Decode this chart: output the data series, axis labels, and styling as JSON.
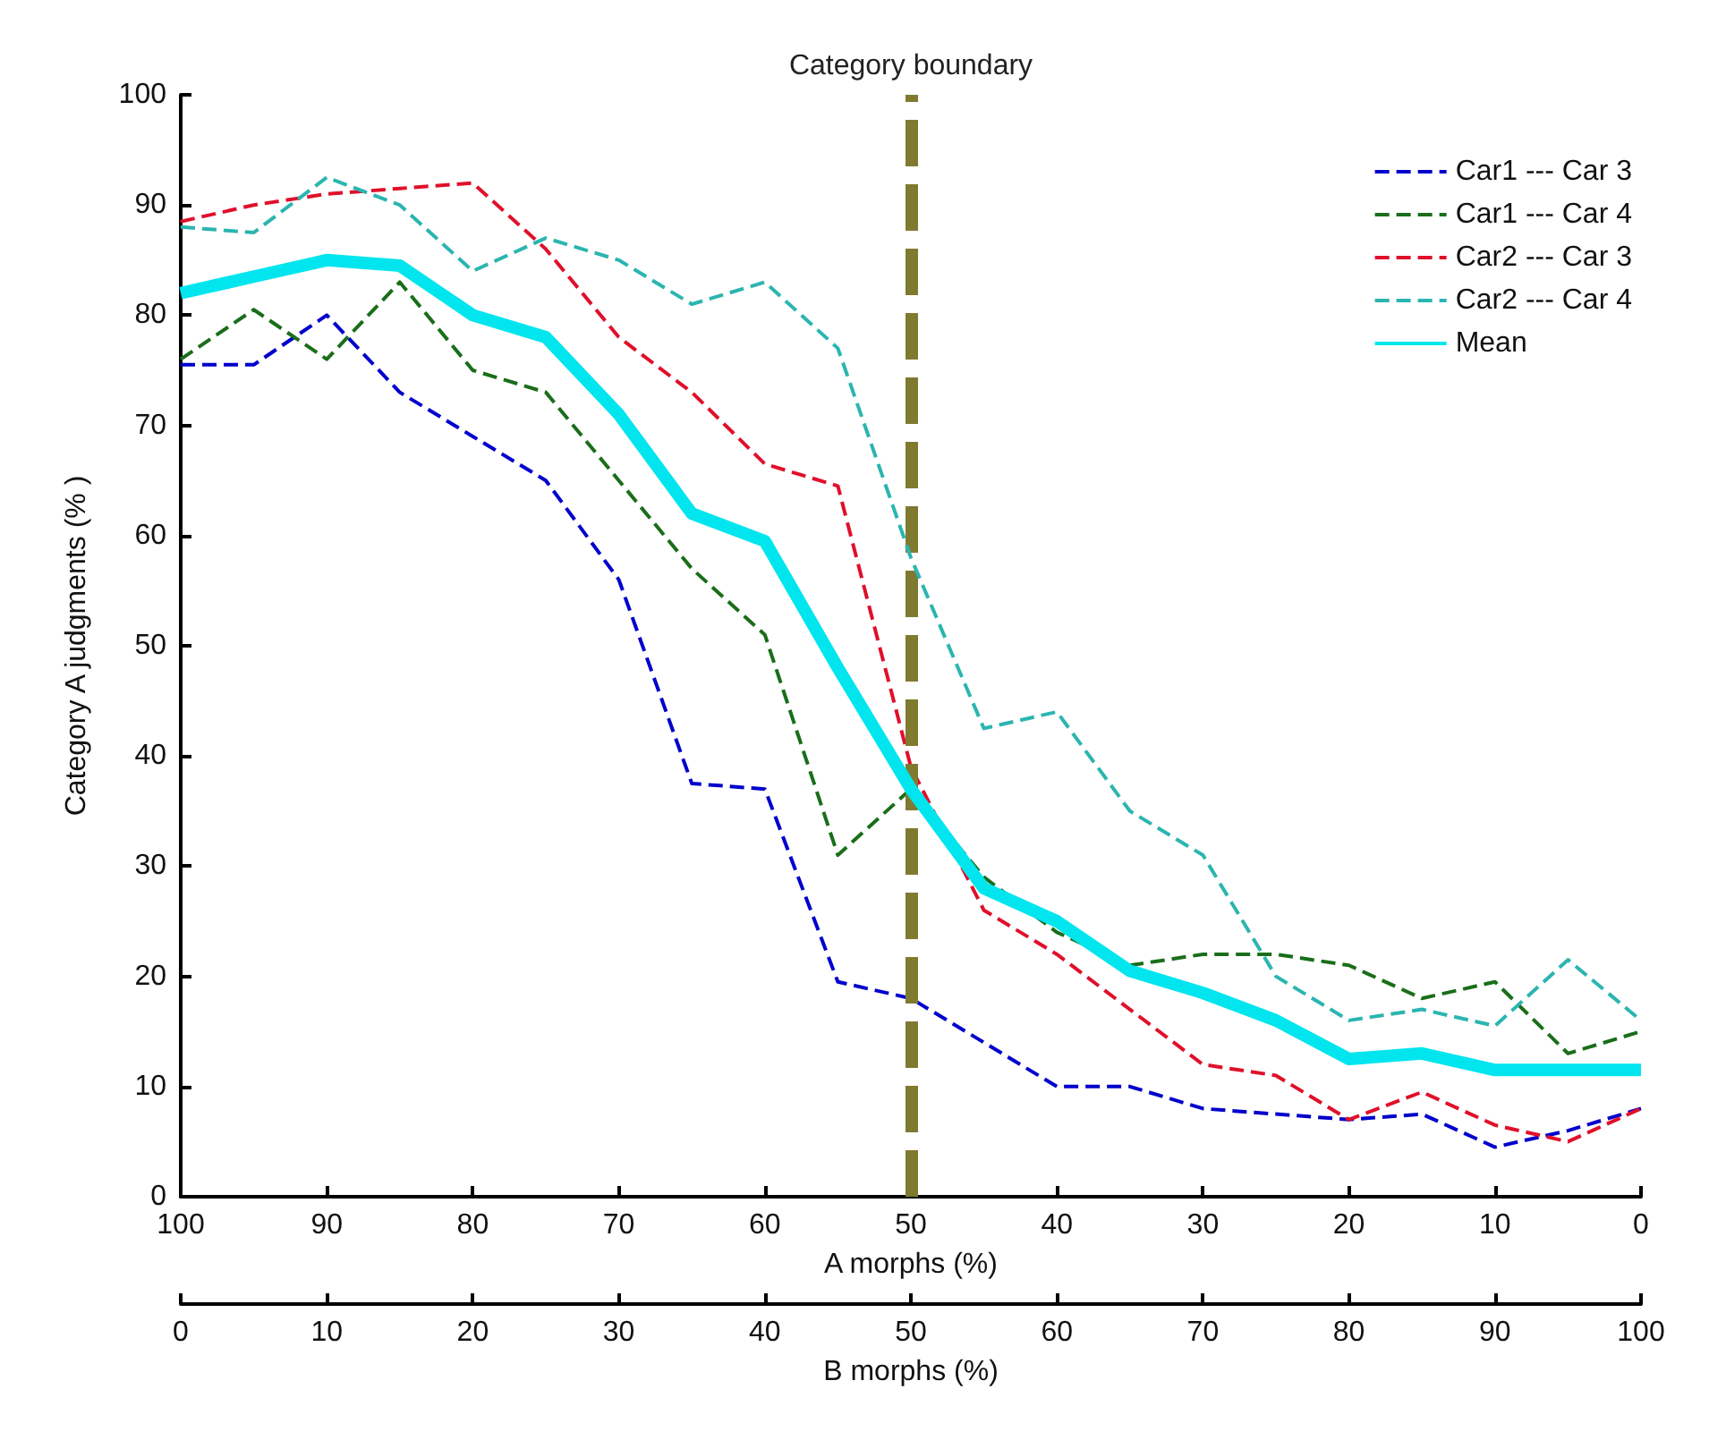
{
  "chart_data": {
    "type": "line",
    "xlabel": "A morphs (%)",
    "x2label": "B morphs (%)",
    "ylabel": "Category A judgments (% )",
    "x": [
      100,
      95,
      90,
      85,
      80,
      75,
      70,
      65,
      60,
      55,
      50,
      45,
      40,
      35,
      30,
      25,
      20,
      15,
      10,
      5,
      0
    ],
    "xlim": [
      100,
      0
    ],
    "xticks": [
      100,
      90,
      80,
      70,
      60,
      50,
      40,
      30,
      20,
      10,
      0
    ],
    "x2lim": [
      0,
      100
    ],
    "x2ticks": [
      0,
      10,
      20,
      30,
      40,
      50,
      60,
      70,
      80,
      90,
      100
    ],
    "ylim": [
      0,
      100
    ],
    "yticks": [
      0,
      10,
      20,
      30,
      40,
      50,
      60,
      70,
      80,
      90,
      100
    ],
    "grid": false,
    "legend": "top right",
    "marker": "none",
    "series": [
      {
        "name": "Car1 --- Car 3",
        "color": "#0000cc",
        "line_style": "dashed",
        "values": [
          75.5,
          75.5,
          80,
          73,
          69,
          65,
          56,
          37.5,
          37,
          19.5,
          18,
          14,
          10,
          10,
          8,
          7.5,
          7,
          7.5,
          4.5,
          6,
          8
        ]
      },
      {
        "name": "Car1 --- Car 4",
        "color": "#1a6e1a",
        "line_style": "dashed",
        "values": [
          76,
          80.5,
          76,
          83,
          75,
          73,
          65,
          57,
          51,
          31,
          37,
          29,
          24,
          21,
          22,
          22,
          21,
          18,
          19.5,
          13,
          15
        ]
      },
      {
        "name": "Car2 --- Car 3",
        "color": "#e0102a",
        "line_style": "dashed",
        "values": [
          88.5,
          90,
          91,
          91.5,
          92,
          86,
          78,
          73,
          66.5,
          64.5,
          39,
          26,
          22,
          17,
          12,
          11,
          7,
          9.5,
          6.5,
          5,
          8
        ]
      },
      {
        "name": "Car2 --- Car 4",
        "color": "#2bb5b0",
        "line_style": "dashed",
        "values": [
          88,
          87.5,
          92.5,
          90,
          84,
          87,
          85,
          81,
          83,
          77,
          58,
          42.5,
          44,
          35,
          31,
          20,
          16,
          17,
          15.5,
          21.5,
          16
        ]
      },
      {
        "name": "Mean",
        "color": "#00e5ee",
        "line_style": "solid",
        "values": [
          82,
          83.5,
          85,
          84.5,
          80,
          78,
          71,
          62,
          59.5,
          48,
          37,
          28,
          25,
          20.5,
          18.5,
          16,
          12.5,
          13,
          11.5,
          11.5,
          11.5
        ]
      }
    ],
    "ref_lines": [
      {
        "axis": "x",
        "value": 50,
        "label": "Category boundary",
        "color": "#807a30",
        "line_style": "dashed"
      }
    ]
  }
}
